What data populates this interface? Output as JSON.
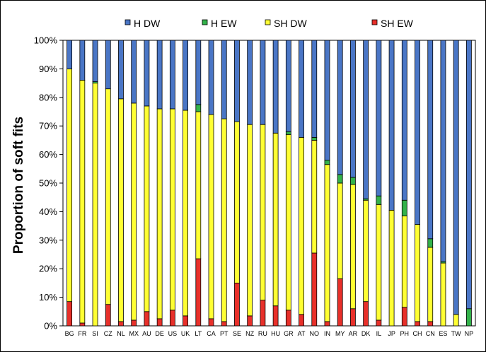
{
  "chart_data": {
    "type": "stacked-bar",
    "title": "",
    "xlabel": "",
    "ylabel": "Proportion of soft fits",
    "ylim": [
      0,
      100
    ],
    "yticks": [
      "0%",
      "10%",
      "20%",
      "30%",
      "40%",
      "50%",
      "60%",
      "70%",
      "80%",
      "90%",
      "100%"
    ],
    "categories": [
      "BG",
      "FR",
      "SI",
      "CZ",
      "NL",
      "MX",
      "AU",
      "DE",
      "US",
      "UK",
      "LT",
      "CA",
      "PT",
      "SE",
      "NZ",
      "RU",
      "HU",
      "GR",
      "AT",
      "NO",
      "IN",
      "MY",
      "AR",
      "DK",
      "IL",
      "JP",
      "PH",
      "CH",
      "CN",
      "ES",
      "TW",
      "NP"
    ],
    "legend": [
      "H DW",
      "H EW",
      "SH DW",
      "SH EW"
    ],
    "colors": {
      "H DW": "#4a76c6",
      "H EW": "#33b24a",
      "SH DW": "#ffff33",
      "SH EW": "#e8302a"
    },
    "series": [
      {
        "name": "SH EW",
        "values": [
          8.5,
          1.0,
          0.0,
          7.5,
          1.5,
          2.0,
          5.0,
          2.5,
          5.5,
          3.5,
          23.5,
          2.5,
          1.5,
          15.0,
          3.5,
          9.0,
          7.0,
          5.5,
          4.0,
          25.5,
          1.5,
          16.5,
          6.0,
          8.5,
          2.0,
          0.0,
          6.5,
          1.5,
          1.5,
          0.0,
          0.0,
          0.0
        ]
      },
      {
        "name": "SH DW",
        "values": [
          81.5,
          85.0,
          85.0,
          75.5,
          78.0,
          76.0,
          72.0,
          73.5,
          70.5,
          72.0,
          51.5,
          71.5,
          71.0,
          56.5,
          67.0,
          61.5,
          60.5,
          61.5,
          62.0,
          39.5,
          55.0,
          33.5,
          43.5,
          35.5,
          40.5,
          40.5,
          32.0,
          34.0,
          26.0,
          22.0,
          4.0,
          0.0
        ]
      },
      {
        "name": "H EW",
        "values": [
          0.0,
          0.0,
          0.5,
          0.0,
          0.0,
          0.0,
          0.0,
          0.0,
          0.0,
          0.0,
          2.5,
          0.0,
          0.0,
          0.0,
          0.0,
          0.0,
          0.0,
          1.0,
          0.0,
          1.0,
          1.5,
          3.0,
          2.5,
          0.5,
          3.0,
          0.0,
          5.5,
          0.0,
          3.0,
          0.5,
          0.0,
          6.0
        ]
      },
      {
        "name": "H DW",
        "values": [
          10.0,
          14.0,
          14.5,
          17.0,
          20.5,
          22.0,
          23.0,
          24.0,
          24.0,
          24.5,
          22.5,
          26.0,
          27.5,
          28.5,
          29.5,
          29.5,
          32.5,
          32.0,
          34.0,
          34.0,
          42.0,
          47.0,
          48.0,
          55.5,
          54.5,
          59.5,
          56.0,
          64.5,
          69.5,
          77.5,
          96.0,
          94.0
        ]
      }
    ]
  }
}
